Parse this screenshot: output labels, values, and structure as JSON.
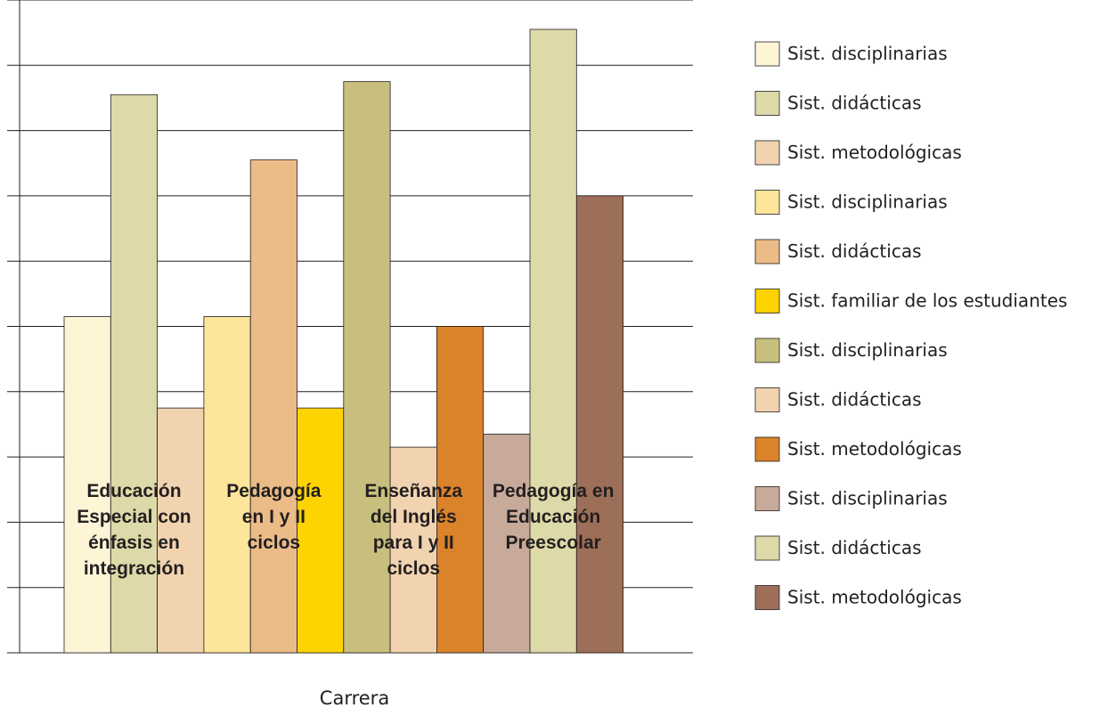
{
  "chart_data": {
    "type": "bar",
    "categories": [
      "Educación Especial con énfasis en integración",
      "Pedagogía en I y II ciclos",
      "Enseñanza del Inglés para I y II ciclos",
      "Pedagogía en Educación Preescolar"
    ],
    "category_lines": [
      [
        "Educación",
        "Especial con",
        "énfasis en",
        "integración"
      ],
      [
        "Pedagogía",
        "en I y II",
        "ciclos"
      ],
      [
        "Enseñanza",
        "del Inglés",
        "para I y II",
        "ciclos"
      ],
      [
        "Pedagogía en",
        "Educación",
        "Preescolar"
      ]
    ],
    "xlabel": "Carrera",
    "ylabel": "",
    "ylim": [
      0,
      10
    ],
    "grid": true,
    "legend_position": "right",
    "series": [
      {
        "name": "Sist. disciplinarias",
        "category": 0,
        "value": 5.15,
        "color": "#fdf5d6"
      },
      {
        "name": "Sist. didácticas",
        "category": 0,
        "value": 8.55,
        "color": "#ddd9a8"
      },
      {
        "name": "Sist. metodológicas",
        "category": 0,
        "value": 3.75,
        "color": "#f1d3b0"
      },
      {
        "name": "Sist. disciplinarias",
        "category": 1,
        "value": 5.15,
        "color": "#fde59a"
      },
      {
        "name": "Sist. didácticas",
        "category": 1,
        "value": 7.55,
        "color": "#ebbb88"
      },
      {
        "name": "Sist. familiar de los estudiantes",
        "category": 1,
        "value": 3.75,
        "color": "#fdd302"
      },
      {
        "name": "Sist. disciplinarias",
        "category": 2,
        "value": 8.75,
        "color": "#c8bf7e"
      },
      {
        "name": "Sist. didácticas",
        "category": 2,
        "value": 3.15,
        "color": "#f1d3b0"
      },
      {
        "name": "Sist. metodológicas",
        "category": 2,
        "value": 5.0,
        "color": "#da832a"
      },
      {
        "name": "Sist. disciplinarias",
        "category": 3,
        "value": 3.35,
        "color": "#c8aa9b"
      },
      {
        "name": "Sist. didácticas",
        "category": 3,
        "value": 9.55,
        "color": "#ddd9a8"
      },
      {
        "name": "Sist. metodológicas",
        "category": 3,
        "value": 7.0,
        "color": "#9e6f58"
      }
    ]
  }
}
